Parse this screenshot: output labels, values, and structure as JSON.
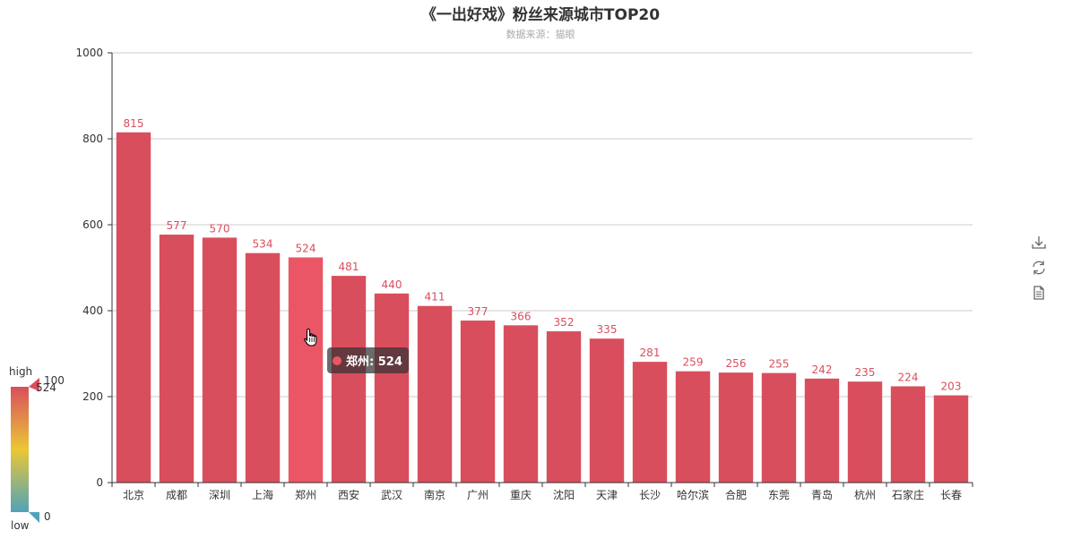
{
  "title": "《一出好戏》粉丝来源城市TOP20",
  "subtitle": "数据来源：猫眼",
  "colors": {
    "bar": "#d94e5d",
    "bar_highlight": "#ea5666",
    "label": "#d94e5d",
    "grid": "#cccccc",
    "axis": "#333333",
    "gradient": [
      "#d94e5d",
      "#eac736",
      "#50a3ba"
    ]
  },
  "tooltip": {
    "label": "郑州: 524"
  },
  "visual_map": {
    "high_text": "high",
    "low_text": "low",
    "max_label": "100",
    "min_label": "0",
    "handle_top_value": "524",
    "range": [
      0,
      100
    ]
  },
  "toolbox": {
    "save_icon": "download-icon",
    "restore_icon": "refresh-icon",
    "data_view_icon": "document-icon"
  },
  "chart_data": {
    "type": "bar",
    "title": "《一出好戏》粉丝来源城市TOP20",
    "subtitle": "数据来源：猫眼",
    "xlabel": "",
    "ylabel": "",
    "ylim": [
      0,
      1000
    ],
    "yticks": [
      0,
      200,
      400,
      600,
      800,
      1000
    ],
    "grid": true,
    "highlighted_category": "郑州",
    "categories": [
      "北京",
      "成都",
      "深圳",
      "上海",
      "郑州",
      "西安",
      "武汉",
      "南京",
      "广州",
      "重庆",
      "沈阳",
      "天津",
      "长沙",
      "哈尔滨",
      "合肥",
      "东莞",
      "青岛",
      "杭州",
      "石家庄",
      "长春"
    ],
    "values": [
      815,
      577,
      570,
      534,
      524,
      481,
      440,
      411,
      377,
      366,
      352,
      335,
      281,
      259,
      256,
      255,
      242,
      235,
      224,
      203
    ]
  }
}
